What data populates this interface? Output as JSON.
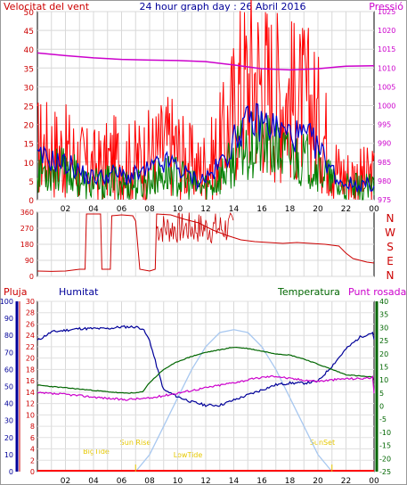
{
  "header": {
    "left_label": "Velocitat del vent",
    "title": "24 hour graph day : 26 Abril 2016",
    "right_label": "Pressió"
  },
  "panel2_labels": [
    "N",
    "W",
    "S",
    "E",
    "N"
  ],
  "panel3_header": {
    "pluja": "Pluja",
    "humitat": "Humitat",
    "temperatura": "Temperatura",
    "punt_rosada": "Punt rosada"
  },
  "astro_labels": {
    "bigtide": "BigTide",
    "sunrise": "Sun Rise",
    "lowtide": "LowTide",
    "sunset": "SunSet"
  },
  "colors": {
    "wind_gust": "#ff0000",
    "wind_avg": "#008000",
    "wind_mean_line": "#0000cc",
    "pressure": "#cc00cc",
    "wind_dir": "#cc0000",
    "humidity": "#000099",
    "temperature": "#006600",
    "dewpoint": "#cc00cc",
    "solar": "#a8c8f0",
    "rain": "#ff0000",
    "astro_text": "#e6c800",
    "frame": "#000000"
  },
  "chart_data": [
    {
      "type": "line",
      "name": "wind_pressure",
      "x_ticks": [
        "02",
        "04",
        "06",
        "08",
        "10",
        "12",
        "14",
        "16",
        "18",
        "20",
        "22",
        "00"
      ],
      "left_axis": {
        "label": "Velocitat del vent",
        "ticks": [
          0,
          5,
          10,
          15,
          20,
          25,
          30,
          35,
          40,
          45,
          50
        ],
        "ylim": [
          0,
          50
        ]
      },
      "right_axis": {
        "label": "Pressió",
        "ticks": [
          975,
          980,
          985,
          990,
          995,
          1000,
          1005,
          1010,
          1015,
          1020,
          1025
        ],
        "ylim": [
          975,
          1025
        ]
      },
      "series": [
        {
          "axis": "left",
          "color": "#ff0000",
          "points": [
            [
              0.5,
              14
            ],
            [
              1.5,
              13
            ],
            [
              2.5,
              12
            ],
            [
              3.5,
              9
            ],
            [
              4.5,
              9
            ],
            [
              5.5,
              11
            ],
            [
              6.5,
              10
            ],
            [
              7.5,
              11
            ],
            [
              8.5,
              13
            ],
            [
              9.5,
              15
            ],
            [
              10.5,
              11
            ],
            [
              11.5,
              8
            ],
            [
              12.5,
              11
            ],
            [
              13.5,
              18
            ],
            [
              14.5,
              30
            ],
            [
              15.5,
              33
            ],
            [
              16.5,
              30
            ],
            [
              17.5,
              28
            ],
            [
              18.5,
              26
            ],
            [
              19.5,
              25
            ],
            [
              20.5,
              17
            ],
            [
              21.5,
              7
            ],
            [
              22.5,
              6
            ],
            [
              23.5,
              6
            ]
          ]
        },
        {
          "axis": "left",
          "color": "#0000cc",
          "points": [
            [
              0.5,
              11
            ],
            [
              1.5,
              10
            ],
            [
              2.5,
              9
            ],
            [
              3.5,
              6
            ],
            [
              4.5,
              6
            ],
            [
              5.5,
              7
            ],
            [
              6.5,
              6
            ],
            [
              7.5,
              7
            ],
            [
              8.5,
              9
            ],
            [
              9.5,
              10
            ],
            [
              10.5,
              7
            ],
            [
              11.5,
              5
            ],
            [
              12.5,
              7
            ],
            [
              13.5,
              12
            ],
            [
              14.5,
              19
            ],
            [
              15.5,
              21
            ],
            [
              16.5,
              20
            ],
            [
              17.5,
              18
            ],
            [
              18.5,
              17
            ],
            [
              19.5,
              16
            ],
            [
              20.5,
              11
            ],
            [
              21.5,
              5
            ],
            [
              22.5,
              4
            ],
            [
              23.5,
              4
            ]
          ]
        },
        {
          "axis": "left",
          "color": "#008000",
          "points": [
            [
              0.5,
              8
            ],
            [
              1.5,
              8
            ],
            [
              2.5,
              7
            ],
            [
              3.5,
              4
            ],
            [
              4.5,
              4
            ],
            [
              5.5,
              5
            ],
            [
              6.5,
              4
            ],
            [
              7.5,
              4
            ],
            [
              8.5,
              6
            ],
            [
              9.5,
              7
            ],
            [
              10.5,
              5
            ],
            [
              11.5,
              3
            ],
            [
              12.5,
              4
            ],
            [
              13.5,
              8
            ],
            [
              14.5,
              13
            ],
            [
              15.5,
              15
            ],
            [
              16.5,
              14
            ],
            [
              17.5,
              12
            ],
            [
              18.5,
              11
            ],
            [
              19.5,
              10
            ],
            [
              20.5,
              7
            ],
            [
              21.5,
              3
            ],
            [
              22.5,
              3
            ],
            [
              23.5,
              3
            ]
          ]
        },
        {
          "axis": "right",
          "color": "#cc00cc",
          "points": [
            [
              0,
              1014
            ],
            [
              2,
              1013.3
            ],
            [
              4,
              1012.7
            ],
            [
              6,
              1012.3
            ],
            [
              8,
              1012.1
            ],
            [
              10,
              1012.0
            ],
            [
              12,
              1011.7
            ],
            [
              14,
              1010.8
            ],
            [
              16,
              1009.8
            ],
            [
              18,
              1009.5
            ],
            [
              20,
              1009.8
            ],
            [
              22,
              1010.5
            ],
            [
              24,
              1010.6
            ]
          ]
        }
      ]
    },
    {
      "type": "line",
      "name": "wind_direction",
      "y_ticks": [
        0,
        90,
        180,
        270,
        360
      ],
      "ylim": [
        0,
        360
      ],
      "series": [
        {
          "color": "#cc0000",
          "points": [
            [
              0,
              30
            ],
            [
              1,
              28
            ],
            [
              2,
              30
            ],
            [
              3,
              40
            ],
            [
              3.4,
              40
            ],
            [
              3.5,
              350
            ],
            [
              4.5,
              350
            ],
            [
              4.6,
              40
            ],
            [
              5.2,
              40
            ],
            [
              5.3,
              340
            ],
            [
              6,
              345
            ],
            [
              6.8,
              340
            ],
            [
              7,
              310
            ],
            [
              7.3,
              40
            ],
            [
              8,
              30
            ],
            [
              8.4,
              40
            ],
            [
              8.5,
              350
            ],
            [
              9.5,
              345
            ],
            [
              10.5,
              320
            ],
            [
              11.5,
              300
            ],
            [
              12.5,
              260
            ],
            [
              13.5,
              230
            ],
            [
              14.5,
              205
            ],
            [
              15.5,
              195
            ],
            [
              16.5,
              190
            ],
            [
              17.5,
              185
            ],
            [
              18.5,
              190
            ],
            [
              19.5,
              185
            ],
            [
              20.5,
              180
            ],
            [
              21.5,
              170
            ],
            [
              22,
              130
            ],
            [
              22.5,
              100
            ],
            [
              23.5,
              80
            ],
            [
              24,
              75
            ]
          ]
        }
      ]
    },
    {
      "type": "line",
      "name": "rain_humidity_temperature",
      "pluja_axis": {
        "ticks": [
          0,
          10,
          20,
          30,
          40,
          50,
          60,
          70,
          80,
          90,
          100
        ],
        "ylim": [
          0,
          100
        ]
      },
      "humitat_axis": {
        "ticks": [
          0,
          2,
          4,
          6,
          8,
          10,
          12,
          14,
          16,
          18,
          20,
          22,
          24,
          26,
          28,
          30
        ],
        "ylim": [
          0,
          30
        ]
      },
      "temp_axis": {
        "ticks": [
          -25,
          -20,
          -15,
          -10,
          -5,
          0,
          5,
          10,
          15,
          20,
          25,
          30,
          35,
          40
        ],
        "ylim": [
          -25,
          40
        ]
      },
      "series": [
        {
          "axis": "pluja",
          "color": "#000099",
          "points": [
            [
              0,
              77
            ],
            [
              1,
              82
            ],
            [
              2,
              83
            ],
            [
              3,
              84
            ],
            [
              4,
              84
            ],
            [
              5,
              84
            ],
            [
              6,
              85
            ],
            [
              7,
              85
            ],
            [
              7.5,
              84
            ],
            [
              8,
              77
            ],
            [
              8.5,
              62
            ],
            [
              9,
              48
            ],
            [
              10,
              44
            ],
            [
              11,
              41
            ],
            [
              12,
              39
            ],
            [
              13,
              39
            ],
            [
              14,
              42
            ],
            [
              15,
              45
            ],
            [
              16,
              48
            ],
            [
              17,
              51
            ],
            [
              18,
              52
            ],
            [
              19,
              52
            ],
            [
              20,
              53
            ],
            [
              21,
              62
            ],
            [
              22,
              72
            ],
            [
              23,
              79
            ],
            [
              24,
              82
            ]
          ]
        },
        {
          "axis": "temp",
          "color": "#006600",
          "points": [
            [
              0,
              8
            ],
            [
              1,
              7.5
            ],
            [
              2,
              7
            ],
            [
              3,
              6.5
            ],
            [
              4,
              6
            ],
            [
              5,
              5.5
            ],
            [
              6,
              5
            ],
            [
              7,
              5
            ],
            [
              7.5,
              5.5
            ],
            [
              8,
              9
            ],
            [
              9,
              14
            ],
            [
              10,
              17
            ],
            [
              11,
              19
            ],
            [
              12,
              20.5
            ],
            [
              13,
              21.5
            ],
            [
              14,
              22.5
            ],
            [
              15,
              22
            ],
            [
              16,
              21
            ],
            [
              17,
              20
            ],
            [
              18,
              19.5
            ],
            [
              19,
              18
            ],
            [
              20,
              16
            ],
            [
              21,
              14
            ],
            [
              22,
              12
            ],
            [
              23,
              11.5
            ],
            [
              24,
              11
            ]
          ]
        },
        {
          "axis": "temp",
          "color": "#cc00cc",
          "points": [
            [
              0,
              5
            ],
            [
              2,
              4.5
            ],
            [
              4,
              3.5
            ],
            [
              6,
              2.5
            ],
            [
              8,
              3
            ],
            [
              9,
              4
            ],
            [
              10,
              5
            ],
            [
              11,
              6
            ],
            [
              12,
              7
            ],
            [
              13,
              8
            ],
            [
              14,
              9
            ],
            [
              15,
              10
            ],
            [
              16,
              11
            ],
            [
              17,
              11.5
            ],
            [
              18,
              10.5
            ],
            [
              19,
              10
            ],
            [
              20,
              9.5
            ],
            [
              21,
              10
            ],
            [
              22,
              10.5
            ],
            [
              23,
              10.5
            ],
            [
              24,
              11
            ]
          ]
        },
        {
          "axis": "humitat",
          "color": "#a8c8f0",
          "points": [
            [
              7,
              0
            ],
            [
              8,
              3
            ],
            [
              9,
              8
            ],
            [
              10,
              13
            ],
            [
              11,
              18
            ],
            [
              12,
              22
            ],
            [
              13,
              24.5
            ],
            [
              14,
              25
            ],
            [
              15,
              24.5
            ],
            [
              16,
              22
            ],
            [
              17,
              18
            ],
            [
              18,
              13
            ],
            [
              19,
              8
            ],
            [
              20,
              3
            ],
            [
              21,
              0
            ]
          ]
        }
      ]
    }
  ]
}
